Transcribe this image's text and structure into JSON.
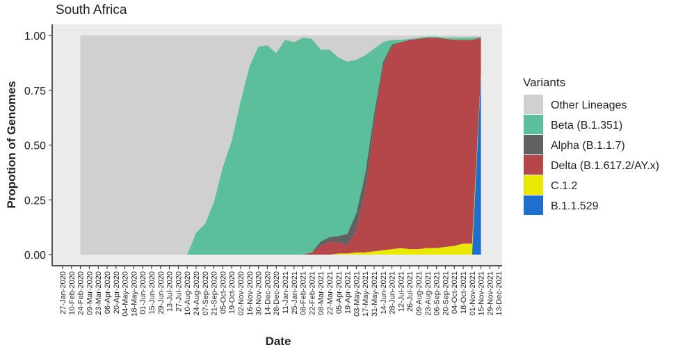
{
  "chart_data": {
    "type": "stacked_area",
    "title": "South Africa",
    "x_label": "Date",
    "y_label": "Propotion of Genomes",
    "legend_title": "Variants",
    "legend_position": "right",
    "categories": [
      "27-Jan-2020",
      "10-Feb-2020",
      "24-Feb-2020",
      "09-Mar-2020",
      "23-Mar-2020",
      "06-Apr-2020",
      "20-Apr-2020",
      "04-May-2020",
      "18-May-2020",
      "01-Jun-2020",
      "15-Jun-2020",
      "29-Jun-2020",
      "13-Jul-2020",
      "27-Jul-2020",
      "10-Aug-2020",
      "24-Aug-2020",
      "07-Sep-2020",
      "21-Sep-2020",
      "05-Oct-2020",
      "19-Oct-2020",
      "02-Nov-2020",
      "16-Nov-2020",
      "30-Nov-2020",
      "14-Dec-2020",
      "28-Dec-2020",
      "11-Jan-2021",
      "25-Jan-2021",
      "08-Feb-2021",
      "22-Feb-2021",
      "08-Mar-2021",
      "22-Mar-2021",
      "05-Apr-2021",
      "19-Apr-2021",
      "03-May-2021",
      "17-May-2021",
      "31-May-2021",
      "14-Jun-2021",
      "28-Jun-2021",
      "12-Jul-2021",
      "26-Jul-2021",
      "09-Aug-2021",
      "23-Aug-2021",
      "06-Sep-2021",
      "20-Sep-2021",
      "04-Oct-2021",
      "18-Oct-2021",
      "01-Nov-2021",
      "15-Nov-2021",
      "29-Nov-2021",
      "13-Dec-2021"
    ],
    "series": [
      {
        "name": "Other Lineages",
        "color": "#d0d0d0",
        "values": [
          null,
          null,
          1,
          1,
          1,
          1,
          1,
          1,
          1,
          1,
          1,
          1,
          1,
          1,
          1,
          0.9,
          0.86,
          0.76,
          0.6,
          0.48,
          0.3,
          0.14,
          0.05,
          0.045,
          0.08,
          0.02,
          0.03,
          0.01,
          0.015,
          0.065,
          0.065,
          0.1,
          0.12,
          0.11,
          0.09,
          0.06,
          0.03,
          0.02,
          0.02,
          0.015,
          0.01,
          0.005,
          0.005,
          0.01,
          0.01,
          0.01,
          0.01,
          0.005,
          null,
          null
        ]
      },
      {
        "name": "Beta (B.1.351)",
        "color": "#5bbf9b",
        "values": [
          null,
          null,
          0,
          0,
          0,
          0,
          0,
          0,
          0,
          0,
          0,
          0,
          0,
          0,
          0,
          0.1,
          0.14,
          0.24,
          0.4,
          0.52,
          0.7,
          0.86,
          0.95,
          0.955,
          0.92,
          0.98,
          0.97,
          0.99,
          0.975,
          0.875,
          0.855,
          0.815,
          0.785,
          0.7,
          0.54,
          0.295,
          0.09,
          0.02,
          0.01,
          0.005,
          0.005,
          0.005,
          0.005,
          0.005,
          0.01,
          0.01,
          0.01,
          0.005,
          null,
          null
        ]
      },
      {
        "name": "Alpha (B.1.1.7)",
        "color": "#616161",
        "values": [
          null,
          null,
          0,
          0,
          0,
          0,
          0,
          0,
          0,
          0,
          0,
          0,
          0,
          0,
          0,
          0,
          0,
          0,
          0,
          0,
          0,
          0,
          0,
          0,
          0,
          0,
          0,
          0,
          0,
          0.02,
          0.02,
          0.03,
          0.05,
          0.08,
          0.08,
          0.05,
          0.02,
          0.01,
          0,
          0,
          0,
          0,
          0,
          0,
          0,
          0,
          0,
          0,
          null,
          null
        ]
      },
      {
        "name": "Delta (B.1.617.2/AY.x)",
        "color": "#b5474a",
        "values": [
          null,
          null,
          0,
          0,
          0,
          0,
          0,
          0,
          0,
          0,
          0,
          0,
          0,
          0,
          0,
          0,
          0,
          0,
          0,
          0,
          0,
          0,
          0,
          0,
          0,
          0,
          0,
          0,
          0.01,
          0.04,
          0.06,
          0.05,
          0.04,
          0.1,
          0.28,
          0.58,
          0.84,
          0.925,
          0.94,
          0.955,
          0.96,
          0.96,
          0.96,
          0.95,
          0.94,
          0.93,
          0.93,
          0.16,
          null,
          null
        ]
      },
      {
        "name": "C.1.2",
        "color": "#e8e800",
        "values": [
          null,
          null,
          0,
          0,
          0,
          0,
          0,
          0,
          0,
          0,
          0,
          0,
          0,
          0,
          0,
          0,
          0,
          0,
          0,
          0,
          0,
          0,
          0,
          0,
          0,
          0,
          0,
          0,
          0,
          0,
          0,
          0.005,
          0.005,
          0.01,
          0.01,
          0.015,
          0.02,
          0.025,
          0.03,
          0.025,
          0.025,
          0.03,
          0.03,
          0.035,
          0.04,
          0.05,
          0.05,
          0.01,
          null,
          null
        ]
      },
      {
        "name": "B.1.1.529",
        "color": "#1f6fd1",
        "values": [
          null,
          null,
          0,
          0,
          0,
          0,
          0,
          0,
          0,
          0,
          0,
          0,
          0,
          0,
          0,
          0,
          0,
          0,
          0,
          0,
          0,
          0,
          0,
          0,
          0,
          0,
          0,
          0,
          0,
          0,
          0,
          0,
          0,
          0,
          0,
          0,
          0,
          0,
          0,
          0,
          0,
          0,
          0,
          0,
          0,
          0,
          0,
          0.82,
          null,
          null
        ]
      }
    ],
    "ylim": [
      0,
      1
    ],
    "yticks": [
      {
        "value": 0,
        "label": "0.00"
      },
      {
        "value": 0.25,
        "label": "0.25"
      },
      {
        "value": 0.5,
        "label": "0.50"
      },
      {
        "value": 0.75,
        "label": "0.75"
      },
      {
        "value": 1,
        "label": "1.00"
      }
    ]
  }
}
